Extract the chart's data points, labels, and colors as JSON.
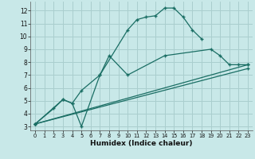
{
  "xlabel": "Humidex (Indice chaleur)",
  "xlim": [
    -0.5,
    23.5
  ],
  "ylim": [
    2.7,
    12.7
  ],
  "xticks": [
    0,
    1,
    2,
    3,
    4,
    5,
    6,
    7,
    8,
    9,
    10,
    11,
    12,
    13,
    14,
    15,
    16,
    17,
    18,
    19,
    20,
    21,
    22,
    23
  ],
  "yticks": [
    3,
    4,
    5,
    6,
    7,
    8,
    9,
    10,
    11,
    12
  ],
  "background_color": "#c8e8e8",
  "grid_color": "#aacece",
  "line_color": "#1a6e64",
  "line1_x": [
    0,
    2,
    3,
    4,
    5,
    7,
    10,
    11,
    12,
    13,
    14,
    15,
    16,
    17,
    18
  ],
  "line1_y": [
    3.2,
    4.4,
    5.1,
    4.8,
    3.0,
    7.0,
    10.5,
    11.3,
    11.5,
    11.6,
    12.2,
    12.2,
    11.5,
    10.5,
    9.8
  ],
  "line2_x": [
    0,
    3,
    4,
    5,
    7,
    8,
    10,
    14,
    19,
    20,
    21,
    22,
    23
  ],
  "line2_y": [
    3.2,
    5.1,
    4.8,
    5.8,
    7.0,
    8.5,
    7.0,
    8.5,
    9.0,
    8.5,
    7.8,
    7.8,
    7.8
  ],
  "line3_x": [
    0,
    23
  ],
  "line3_y": [
    3.2,
    7.8
  ],
  "line4_x": [
    0,
    23
  ],
  "line4_y": [
    3.2,
    7.5
  ]
}
